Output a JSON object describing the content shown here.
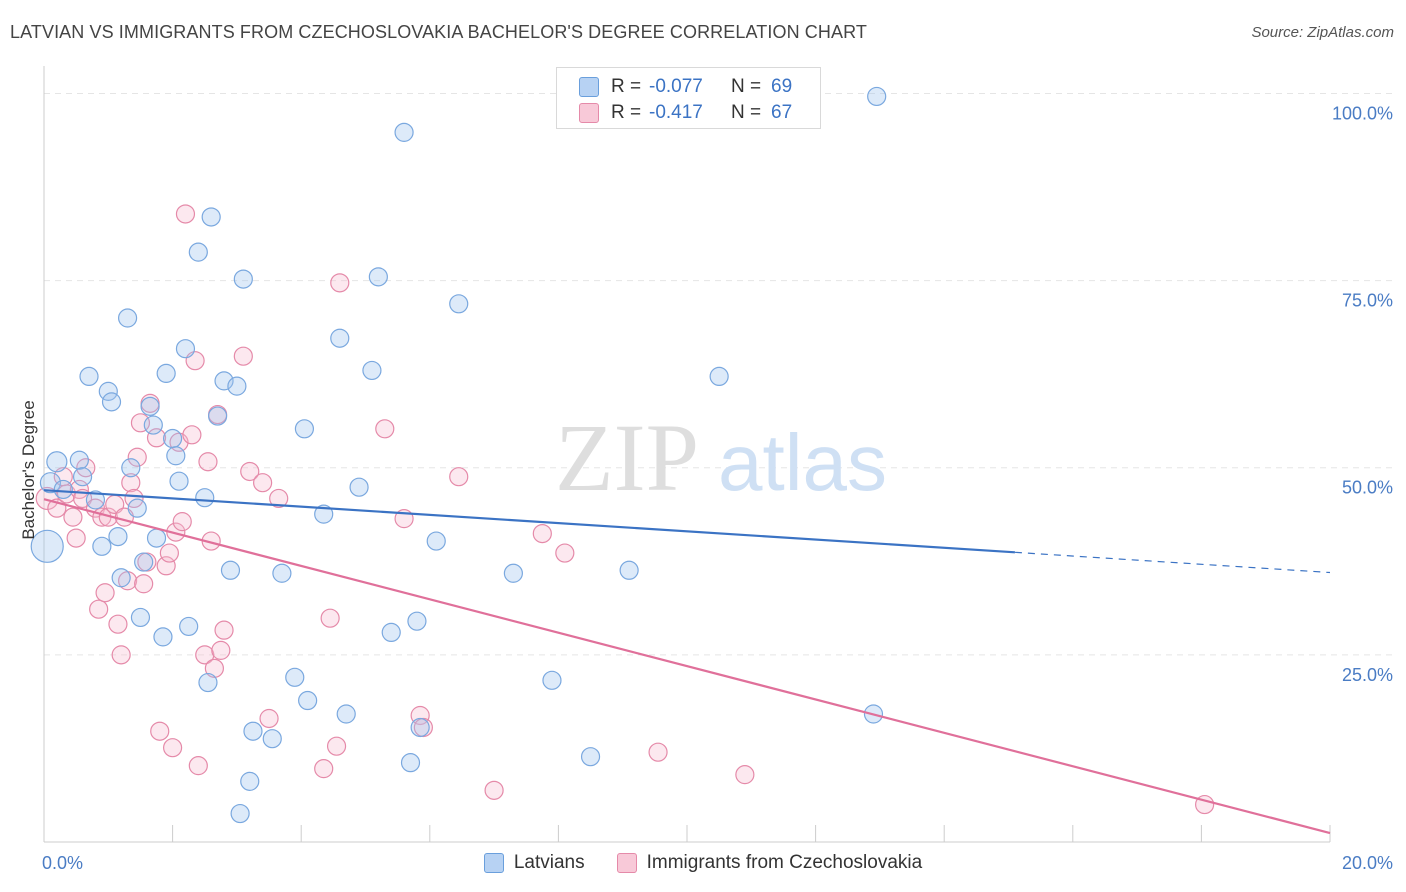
{
  "header": {
    "title": "LATVIAN VS IMMIGRANTS FROM CZECHOSLOVAKIA BACHELOR'S DEGREE CORRELATION CHART",
    "source": "Source: ZipAtlas.com"
  },
  "watermark": {
    "zip": "ZIP",
    "atlas": "atlas"
  },
  "legend": {
    "r_label": "R =",
    "n_label": "N =",
    "rows": [
      {
        "r": "-0.077",
        "n": "69",
        "color": "#9fc4ef",
        "stroke": "#6a9fdc"
      },
      {
        "r": "-0.417",
        "n": "67",
        "color": "#f6bcd0",
        "stroke": "#e58aa9"
      }
    ]
  },
  "bottom_legend": [
    {
      "label": "Latvians",
      "color": "#b7d2f3",
      "stroke": "#6a9fdc"
    },
    {
      "label": "Immigrants from Czechoslovakia",
      "color": "#f8c9d8",
      "stroke": "#e58aa9"
    }
  ],
  "chart_data": {
    "type": "scatter",
    "title": "LATVIAN VS IMMIGRANTS FROM CZECHOSLOVAKIA BACHELOR'S DEGREE CORRELATION CHART",
    "xlabel": "",
    "ylabel": "Bachelor's Degree",
    "xlim": [
      0,
      20
    ],
    "ylim": [
      0,
      103
    ],
    "x_tick_labels": [
      "0.0%",
      "20.0%"
    ],
    "y_ticks": [
      25,
      50,
      75,
      100
    ],
    "y_tick_labels": [
      "25.0%",
      "50.0%",
      "75.0%",
      "100.0%"
    ],
    "grid": true,
    "colors": {
      "blue": "#3b73c4",
      "pink": "#e0709a",
      "grid": "#e5e5e5",
      "tick": "#4a7cc4"
    },
    "series": [
      {
        "name": "Latvians",
        "r": -0.077,
        "n": 69,
        "fill": "rgba(159,196,239,0.35)",
        "stroke": "#7aa8df",
        "trend": {
          "x0": 0,
          "y0": 47,
          "x1": 15.1,
          "y1": 38.7,
          "dash_to_x": 20,
          "dash_to_y": 36.0
        },
        "points": [
          [
            0.05,
            39.5,
            16
          ],
          [
            0.1,
            48.0,
            10
          ],
          [
            0.2,
            50.8,
            10
          ],
          [
            0.3,
            47.1,
            9
          ],
          [
            0.55,
            51.0,
            9
          ],
          [
            0.6,
            48.8,
            9
          ],
          [
            0.8,
            45.7,
            9
          ],
          [
            0.9,
            39.5,
            9
          ],
          [
            0.7,
            62.2,
            9
          ],
          [
            1.0,
            60.2,
            9
          ],
          [
            1.05,
            58.8,
            9
          ],
          [
            1.15,
            40.8,
            9
          ],
          [
            1.2,
            35.3,
            9
          ],
          [
            1.3,
            70.0,
            9
          ],
          [
            1.35,
            50.0,
            9
          ],
          [
            1.45,
            44.6,
            9
          ],
          [
            1.5,
            30.0,
            9
          ],
          [
            1.55,
            37.4,
            9
          ],
          [
            1.65,
            58.2,
            9
          ],
          [
            1.7,
            55.7,
            9
          ],
          [
            1.75,
            40.6,
            9
          ],
          [
            1.85,
            27.4,
            9
          ],
          [
            1.9,
            62.6,
            9
          ],
          [
            2.0,
            53.9,
            9
          ],
          [
            2.05,
            51.6,
            9
          ],
          [
            2.1,
            48.2,
            9
          ],
          [
            2.2,
            65.9,
            9
          ],
          [
            2.25,
            28.8,
            9
          ],
          [
            2.4,
            78.8,
            9
          ],
          [
            2.5,
            46.0,
            9
          ],
          [
            2.55,
            21.3,
            9
          ],
          [
            2.6,
            83.5,
            9
          ],
          [
            2.7,
            56.9,
            9
          ],
          [
            2.8,
            61.6,
            9
          ],
          [
            2.9,
            36.3,
            9
          ],
          [
            3.0,
            60.9,
            9
          ],
          [
            3.05,
            3.8,
            9
          ],
          [
            3.1,
            75.2,
            9
          ],
          [
            3.2,
            8.1,
            9
          ],
          [
            3.25,
            14.8,
            9
          ],
          [
            3.55,
            13.8,
            9
          ],
          [
            3.7,
            35.9,
            9
          ],
          [
            3.9,
            22.0,
            9
          ],
          [
            4.05,
            55.2,
            9
          ],
          [
            4.1,
            18.9,
            9
          ],
          [
            4.35,
            43.8,
            9
          ],
          [
            4.6,
            67.3,
            9
          ],
          [
            4.7,
            17.1,
            9
          ],
          [
            4.9,
            47.4,
            9
          ],
          [
            5.1,
            63.0,
            9
          ],
          [
            5.2,
            75.5,
            9
          ],
          [
            5.4,
            28.0,
            9
          ],
          [
            5.6,
            94.8,
            9
          ],
          [
            5.7,
            10.6,
            9
          ],
          [
            5.8,
            29.5,
            9
          ],
          [
            5.85,
            15.3,
            9
          ],
          [
            6.1,
            40.2,
            9
          ],
          [
            6.45,
            71.9,
            9
          ],
          [
            7.3,
            35.9,
            9
          ],
          [
            7.9,
            21.6,
            9
          ],
          [
            8.5,
            11.4,
            9
          ],
          [
            9.1,
            36.3,
            9
          ],
          [
            10.5,
            62.2,
            9
          ],
          [
            12.9,
            17.1,
            9
          ],
          [
            12.95,
            99.6,
            9
          ]
        ]
      },
      {
        "name": "Immigrants from Czechoslovakia",
        "r": -0.417,
        "n": 67,
        "fill": "rgba(246,188,208,0.35)",
        "stroke": "#e58aa9",
        "trend": {
          "x0": 0,
          "y0": 45.8,
          "x1": 20,
          "y1": 1.2
        },
        "points": [
          [
            0.05,
            45.9,
            11
          ],
          [
            0.2,
            44.6,
            9
          ],
          [
            0.3,
            48.8,
            9
          ],
          [
            0.35,
            46.5,
            9
          ],
          [
            0.45,
            43.4,
            9
          ],
          [
            0.5,
            40.6,
            9
          ],
          [
            0.55,
            47.1,
            9
          ],
          [
            0.6,
            45.9,
            9
          ],
          [
            0.65,
            50.0,
            9
          ],
          [
            0.8,
            44.6,
            9
          ],
          [
            0.85,
            31.1,
            9
          ],
          [
            0.9,
            43.4,
            9
          ],
          [
            0.95,
            33.3,
            9
          ],
          [
            1.0,
            43.4,
            9
          ],
          [
            1.1,
            45.1,
            9
          ],
          [
            1.15,
            29.1,
            9
          ],
          [
            1.2,
            25.0,
            9
          ],
          [
            1.25,
            43.4,
            9
          ],
          [
            1.3,
            34.9,
            9
          ],
          [
            1.35,
            48.0,
            9
          ],
          [
            1.4,
            45.9,
            9
          ],
          [
            1.45,
            51.4,
            9
          ],
          [
            1.5,
            56.0,
            9
          ],
          [
            1.55,
            34.5,
            9
          ],
          [
            1.6,
            37.4,
            9
          ],
          [
            1.65,
            58.6,
            9
          ],
          [
            1.75,
            54.0,
            9
          ],
          [
            1.8,
            14.8,
            9
          ],
          [
            1.9,
            36.9,
            9
          ],
          [
            1.95,
            38.6,
            9
          ],
          [
            2.0,
            12.6,
            9
          ],
          [
            2.05,
            41.4,
            9
          ],
          [
            2.1,
            53.4,
            9
          ],
          [
            2.15,
            42.8,
            9
          ],
          [
            2.2,
            83.9,
            9
          ],
          [
            2.3,
            54.4,
            9
          ],
          [
            2.35,
            64.3,
            9
          ],
          [
            2.4,
            10.2,
            9
          ],
          [
            2.5,
            25.0,
            9
          ],
          [
            2.55,
            50.8,
            9
          ],
          [
            2.6,
            40.2,
            9
          ],
          [
            2.65,
            23.2,
            9
          ],
          [
            2.7,
            57.1,
            9
          ],
          [
            2.75,
            25.6,
            9
          ],
          [
            2.8,
            28.3,
            9
          ],
          [
            3.1,
            64.9,
            9
          ],
          [
            3.2,
            49.5,
            9
          ],
          [
            3.4,
            48.0,
            9
          ],
          [
            3.5,
            16.5,
            9
          ],
          [
            3.65,
            45.9,
            9
          ],
          [
            4.35,
            9.8,
            9
          ],
          [
            4.45,
            29.9,
            9
          ],
          [
            4.55,
            12.8,
            9
          ],
          [
            4.6,
            74.7,
            9
          ],
          [
            5.3,
            55.2,
            9
          ],
          [
            5.6,
            43.2,
            9
          ],
          [
            5.85,
            16.9,
            9
          ],
          [
            5.9,
            15.3,
            9
          ],
          [
            6.45,
            48.8,
            9
          ],
          [
            7.0,
            6.9,
            9
          ],
          [
            7.75,
            41.2,
            9
          ],
          [
            8.1,
            38.6,
            9
          ],
          [
            9.55,
            12.0,
            9
          ],
          [
            10.9,
            9.0,
            9
          ],
          [
            18.05,
            5.0,
            9
          ]
        ]
      }
    ]
  }
}
